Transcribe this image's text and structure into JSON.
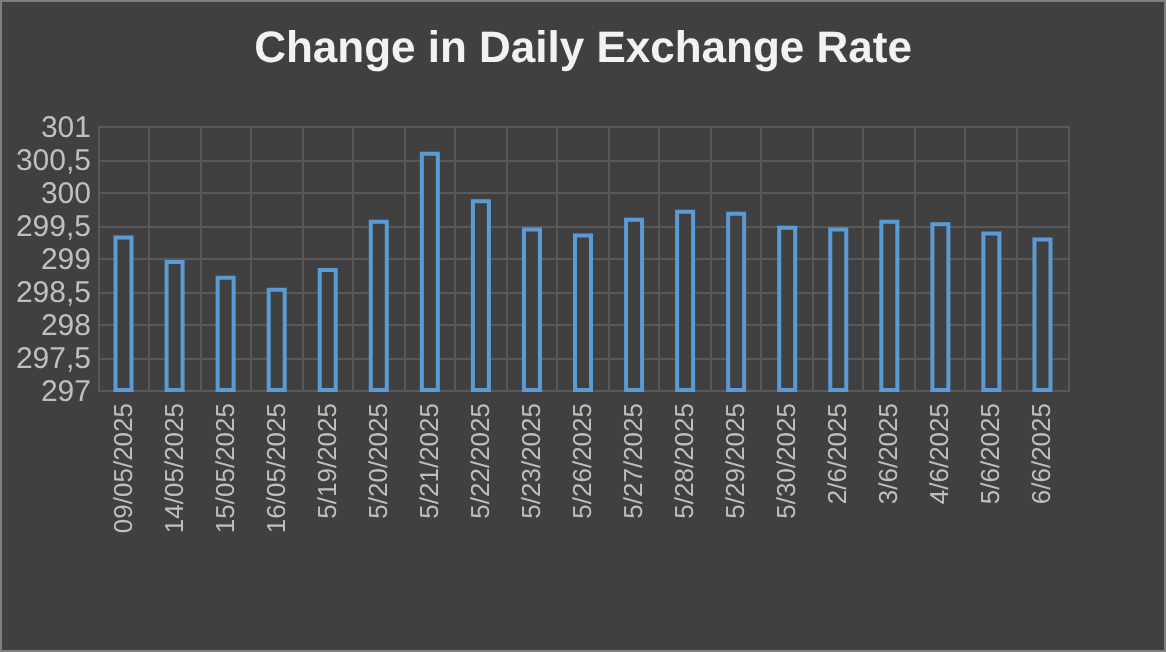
{
  "chart_data": {
    "type": "bar",
    "title": "Change in Daily Exchange Rate",
    "categories": [
      "09/05/2025",
      "14/05/2025",
      "15/05/2025",
      "16/05/2025",
      "5/19/2025",
      "5/20/2025",
      "5/21/2025",
      "5/22/2025",
      "5/23/2025",
      "5/26/2025",
      "5/27/2025",
      "5/28/2025",
      "5/29/2025",
      "5/30/2025",
      "2/6/2025",
      "3/6/2025",
      "4/6/2025",
      "5/6/2025",
      "6/6/2025"
    ],
    "values": [
      299.31,
      298.94,
      298.7,
      298.52,
      298.82,
      299.55,
      300.58,
      299.86,
      299.43,
      299.34,
      299.58,
      299.7,
      299.67,
      299.46,
      299.43,
      299.55,
      299.51,
      299.37,
      299.28
    ],
    "color": "#5b9bd5",
    "ylim": [
      297,
      301
    ],
    "yticks": [
      297,
      {
        "value": 297.5,
        "label": "297,5"
      },
      298,
      {
        "value": 298.5,
        "label": "298,5"
      },
      299,
      {
        "value": 299.5,
        "label": "299,5"
      },
      300,
      {
        "value": 300.5,
        "label": "300,5"
      },
      301
    ],
    "grid": true
  }
}
